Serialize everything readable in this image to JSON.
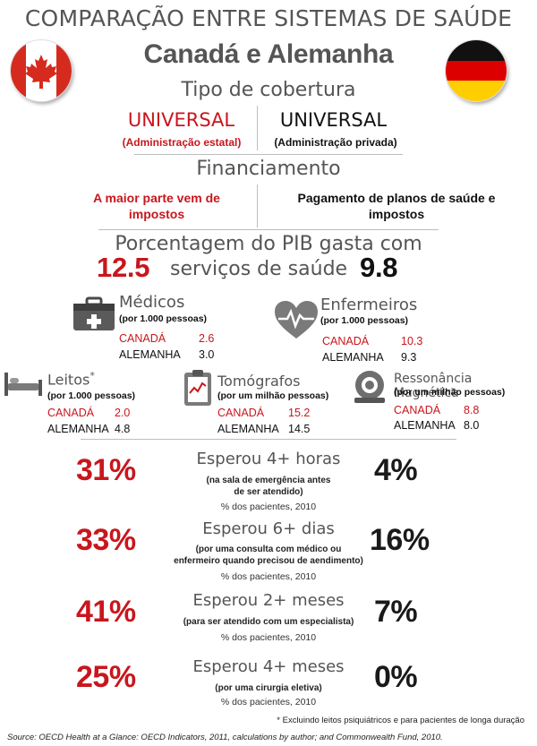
{
  "header": {
    "title": "COMPARAÇÃO ENTRE SISTEMAS DE SAÚDE",
    "subtitle": "Canadá e Alemanha"
  },
  "coverage": {
    "heading": "Tipo de cobertura",
    "canada_main": "UNIVERSAL",
    "canada_sub": "(Administração estatal)",
    "germany_main": "UNIVERSAL",
    "germany_sub": "(Administração privada)"
  },
  "financing": {
    "heading": "Financiamento",
    "canada_line1": "A maior parte vem de",
    "canada_line2": "impostos",
    "germany_line1": "Pagamento de planos de saúde e",
    "germany_line2": "impostos"
  },
  "gdp": {
    "line1": "Porcentagem do PIB gasta com",
    "canada_value": "12.5",
    "line2": "serviços de saúde",
    "germany_value": "9.8"
  },
  "resources": {
    "doctors": {
      "title": "Médicos",
      "unit": "(por 1.000 pessoas)",
      "canada_label": "CANADÁ",
      "canada_value": "2.6",
      "germany_label": "ALEMANHA",
      "germany_value": "3.0",
      "icon": "medical-bag-icon"
    },
    "nurses": {
      "title": "Enfermeiros",
      "unit": "(por 1.000 pessoas)",
      "canada_label": "CANADÁ",
      "canada_value": "10.3",
      "germany_label": "ALEMANHA",
      "germany_value": "9.3",
      "icon": "heart-pulse-icon"
    },
    "beds": {
      "title": "Leitos",
      "marker": "*",
      "unit": "(por 1.000 pessoas)",
      "canada_label": "CANADÁ",
      "canada_value": "2.0",
      "germany_label": "ALEMANHA",
      "germany_value": "4.8",
      "icon": "hospital-bed-icon"
    },
    "ct": {
      "title": "Tomógrafos",
      "unit": "(por um milhão pessoas)",
      "canada_label": "CANADÁ",
      "canada_value": "15.2",
      "germany_label": "ALEMANHA",
      "germany_value": "14.5",
      "icon": "clipboard-chart-icon"
    },
    "mri": {
      "title": "Ressonância Magnética",
      "unit": "(por um milhão pessoas)",
      "canada_label": "CANADÁ",
      "canada_value": "8.8",
      "germany_label": "ALEMANHA",
      "germany_value": "8.0",
      "icon": "mri-scanner-icon"
    }
  },
  "waits": [
    {
      "canada": "31%",
      "title": "Esperou 4+ horas",
      "sub1": "(na sala de emergência antes",
      "sub2": "de ser atendido)",
      "foot": "% dos pacientes, 2010",
      "germany": "4%"
    },
    {
      "canada": "33%",
      "title": "Esperou 6+ dias",
      "sub1": "(por uma consulta com médico ou",
      "sub2": "enfermeiro quando precisou de aendimento)",
      "foot": "% dos pacientes, 2010",
      "germany": "16%"
    },
    {
      "canada": "41%",
      "title": "Esperou 2+ meses",
      "sub1": "(para ser atendido com um especialista)",
      "sub2": "",
      "foot": "% dos pacientes, 2010",
      "germany": "7%"
    },
    {
      "canada": "25%",
      "title": "Esperou 4+ meses",
      "sub1": "(por uma cirurgia eletiva)",
      "sub2": "",
      "foot": "% dos pacientes, 2010",
      "germany": "0%"
    }
  ],
  "footnote": "* Excluindo leitos psiquiátricos e para pacientes de longa duração",
  "source": "Source: OECD Health at a Glance: OECD Indicators, 2011, calculations by author; and Commonwealth Fund, 2010.",
  "colors": {
    "canada_red": "#c8161d",
    "germany_black": "#111111",
    "germany_red": "#dd0000",
    "germany_gold": "#ffce00"
  }
}
